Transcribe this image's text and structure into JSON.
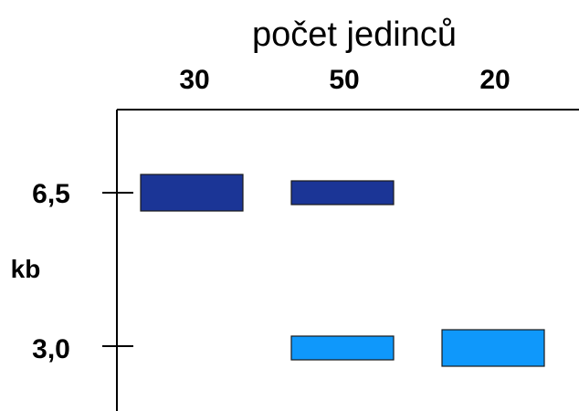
{
  "title": "počet jedinců",
  "unit_label": "kb",
  "columns": [
    {
      "label": "30"
    },
    {
      "label": "50"
    },
    {
      "label": "20"
    }
  ],
  "size_markers": [
    {
      "label": "6,5"
    },
    {
      "label": "3,0"
    }
  ],
  "bands": [
    {
      "column": 0,
      "size": "6,5",
      "strength": "thick",
      "color": "#1b3596"
    },
    {
      "column": 1,
      "size": "6,5",
      "strength": "thin",
      "color": "#1b3596"
    },
    {
      "column": 1,
      "size": "3,0",
      "strength": "thin",
      "color": "#0f98fb"
    },
    {
      "column": 2,
      "size": "3,0",
      "strength": "thick",
      "color": "#0f98fb"
    }
  ],
  "colors": {
    "large_allele": "#1b3596",
    "small_allele": "#0f98fb",
    "axis": "#000000"
  }
}
